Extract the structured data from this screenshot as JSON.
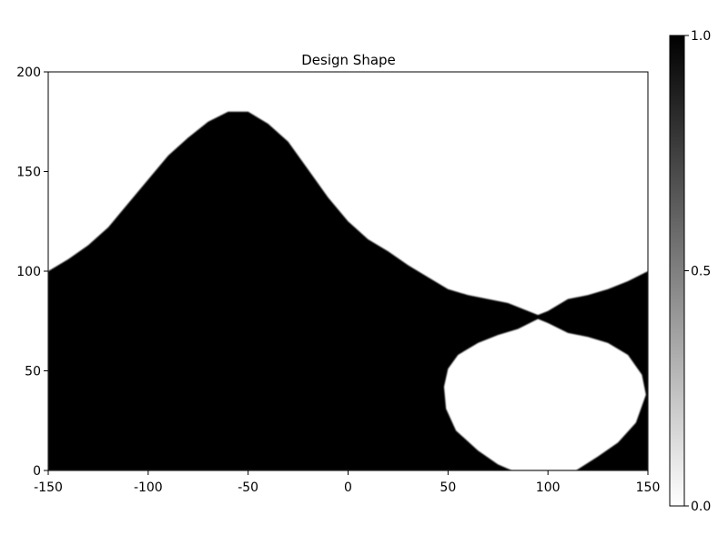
{
  "chart_data": {
    "type": "heatmap",
    "title": "Design Shape",
    "xlabel": "",
    "ylabel": "",
    "xlim": [
      -150,
      150
    ],
    "ylim": [
      0,
      200
    ],
    "x_ticks": [
      "-150",
      "-100",
      "-50",
      "0",
      "50",
      "100",
      "150"
    ],
    "y_ticks": [
      "0",
      "50",
      "100",
      "150",
      "200"
    ],
    "colormap": "grayscale",
    "color_low": "#ffffff",
    "color_high": "#000000",
    "colorbar": {
      "range": [
        0.0,
        1.0
      ],
      "ticks": [
        "0.0",
        "0.5",
        "1.0"
      ]
    },
    "filled_value": 1.0,
    "empty_value": 0.0,
    "upper_boundary": [
      [
        -150,
        100
      ],
      [
        -140,
        106
      ],
      [
        -130,
        113
      ],
      [
        -120,
        122
      ],
      [
        -110,
        134
      ],
      [
        -100,
        146
      ],
      [
        -90,
        158
      ],
      [
        -80,
        167
      ],
      [
        -70,
        175
      ],
      [
        -60,
        180
      ],
      [
        -50,
        180
      ],
      [
        -40,
        174
      ],
      [
        -30,
        165
      ],
      [
        -20,
        151
      ],
      [
        -10,
        137
      ],
      [
        0,
        125
      ],
      [
        10,
        116
      ],
      [
        20,
        110
      ],
      [
        30,
        103
      ],
      [
        40,
        97
      ],
      [
        50,
        91
      ],
      [
        60,
        88
      ],
      [
        70,
        86
      ],
      [
        80,
        84
      ],
      [
        90,
        80
      ],
      [
        95,
        78
      ],
      [
        100,
        80
      ],
      [
        110,
        86
      ],
      [
        120,
        88
      ],
      [
        130,
        91
      ],
      [
        140,
        95
      ],
      [
        150,
        100
      ]
    ],
    "hole_boundary": [
      [
        95,
        76
      ],
      [
        85,
        71
      ],
      [
        75,
        68
      ],
      [
        65,
        64
      ],
      [
        55,
        58
      ],
      [
        50,
        51
      ],
      [
        48,
        42
      ],
      [
        49,
        31
      ],
      [
        54,
        20
      ],
      [
        65,
        10
      ],
      [
        75,
        3
      ],
      [
        82,
        0
      ],
      [
        114,
        0
      ],
      [
        125,
        7
      ],
      [
        135,
        14
      ],
      [
        144,
        24
      ],
      [
        149,
        38
      ],
      [
        147,
        48
      ],
      [
        140,
        58
      ],
      [
        130,
        64
      ],
      [
        120,
        67
      ],
      [
        110,
        69
      ],
      [
        100,
        74
      ]
    ]
  }
}
